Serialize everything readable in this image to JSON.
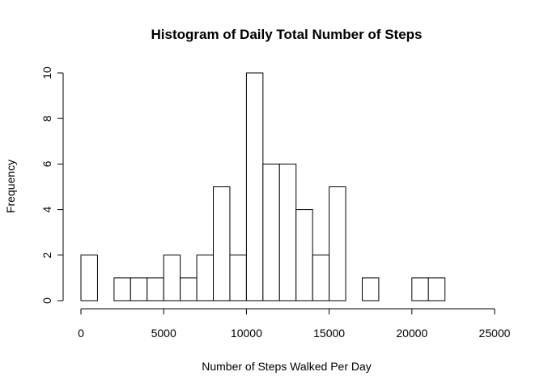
{
  "chart_data": {
    "type": "bar",
    "title": "Histogram of Daily Total Number of Steps",
    "xlabel": "Number of Steps Walked Per Day",
    "ylabel": "Frequency",
    "bin_width": 1000,
    "bins_start": [
      0,
      1000,
      2000,
      3000,
      4000,
      5000,
      6000,
      7000,
      8000,
      9000,
      10000,
      11000,
      12000,
      13000,
      14000,
      15000,
      16000,
      17000,
      18000,
      19000,
      20000,
      21000
    ],
    "values": [
      2,
      0,
      1,
      1,
      1,
      2,
      1,
      2,
      5,
      2,
      10,
      6,
      6,
      4,
      2,
      5,
      0,
      1,
      0,
      0,
      1,
      1
    ],
    "xlim": [
      0,
      25000
    ],
    "ylim": [
      0,
      10
    ],
    "x_ticks": [
      0,
      5000,
      10000,
      15000,
      20000,
      25000
    ],
    "y_ticks": [
      0,
      2,
      4,
      6,
      8,
      10
    ],
    "grid": false,
    "legend": "none"
  }
}
